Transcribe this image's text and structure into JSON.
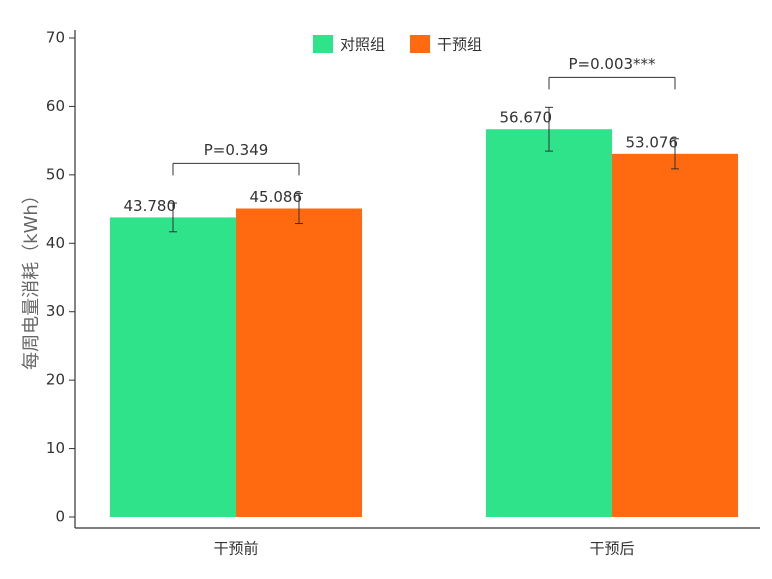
{
  "chart_data": {
    "type": "bar",
    "y_label": "每周电量消耗（kWh）",
    "categories": [
      "干预前",
      "干预后"
    ],
    "series": [
      {
        "name": "对照组",
        "color": "#2ee38a",
        "values": [
          43.78,
          56.67
        ],
        "value_labels": [
          "43.780",
          "56.670"
        ],
        "errors": [
          2.1,
          3.2
        ]
      },
      {
        "name": "干预组",
        "color": "#ff6a10",
        "values": [
          45.086,
          53.076
        ],
        "value_labels": [
          "45.086",
          "53.076"
        ],
        "errors": [
          2.2,
          2.2
        ]
      }
    ],
    "annotations": [
      "P=0.349",
      "P=0.003***"
    ],
    "ylim": [
      0,
      70
    ],
    "yticks": [
      0,
      10,
      20,
      30,
      40,
      50,
      60,
      70
    ],
    "legend": "top",
    "grid": false
  }
}
